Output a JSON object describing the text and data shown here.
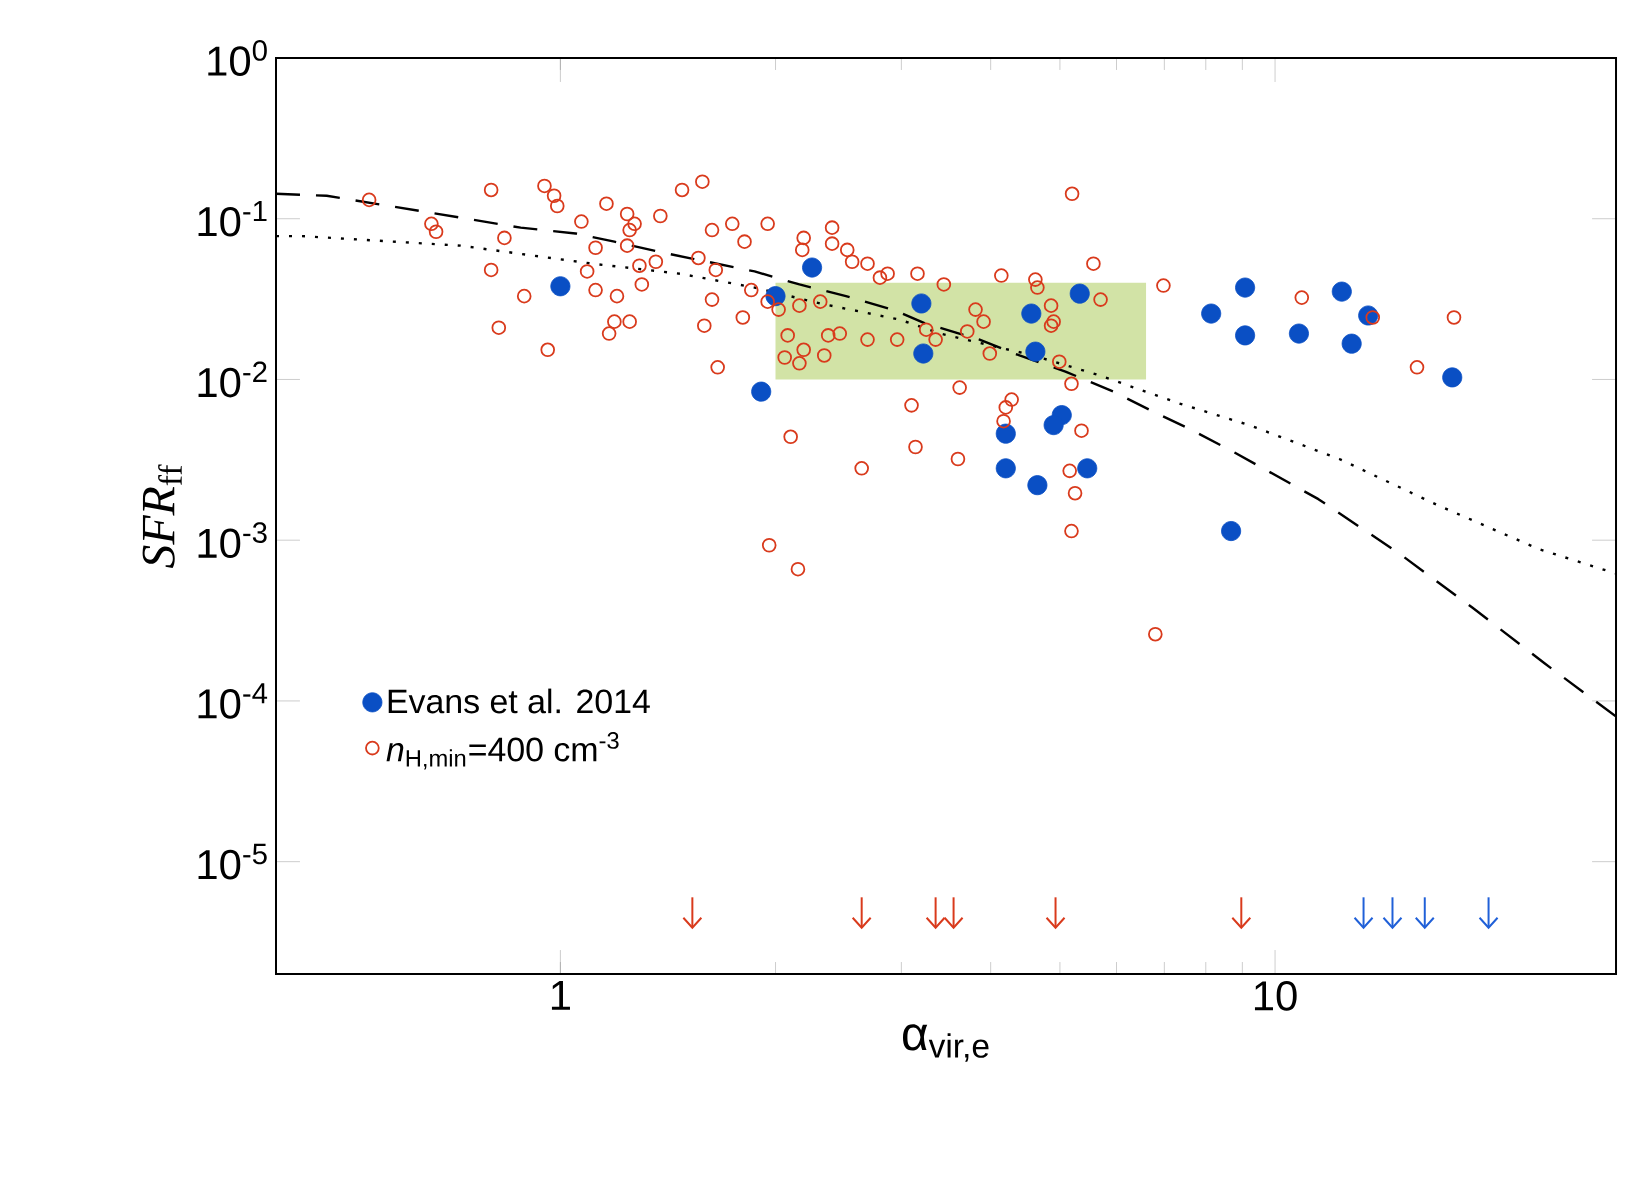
{
  "chart_data": {
    "type": "scatter",
    "xlabel": "α$_{vir,e}$",
    "ylabel": "*SFR*$_{ff}$",
    "log": "xy",
    "xlim": [
      0.4,
      30
    ],
    "ylim": [
      2e-06,
      1
    ],
    "xticks": [
      1,
      10
    ],
    "yticks": [
      {
        "value": 1,
        "label": "10$^{0}$"
      },
      {
        "value": 0.1,
        "label": "10$^{-1}$"
      },
      {
        "value": 0.01,
        "label": "10$^{-2}$"
      },
      {
        "value": 0.001,
        "label": "10$^{-3}$"
      },
      {
        "value": 0.0001,
        "label": "10$^{-4}$"
      },
      {
        "value": 1e-05,
        "label": "10$^{-5}$"
      }
    ],
    "legend": "bottom left",
    "series": [
      {
        "type": "area",
        "color": "#d2e3a6",
        "x": [
          2,
          6.6
        ],
        "values": [
          null,
          null
        ],
        "lower": [
          0.01,
          0.01
        ],
        "upper": [
          0.04,
          0.04
        ]
      },
      {
        "type": "line",
        "color": "#000000",
        "line_style": "dashed",
        "marker": "none",
        "x": [
          0.4,
          0.471,
          0.65,
          0.88,
          1.05,
          1.19,
          1.38,
          1.87,
          2.16,
          2.51,
          2.93,
          3.24,
          3.86,
          4.39,
          5.09,
          5.94,
          6.76,
          7.68,
          8.79,
          11.5,
          14.9,
          18.9,
          23.8,
          30
        ],
        "values": [
          0.143,
          0.139,
          0.11,
          0.088,
          0.081,
          0.072,
          0.062,
          0.047,
          0.039,
          0.033,
          0.027,
          0.0223,
          0.0177,
          0.0141,
          0.0112,
          0.0084,
          0.0063,
          0.0048,
          0.0035,
          0.0018,
          0.00083,
          0.00038,
          0.000172,
          8e-05
        ]
      },
      {
        "type": "line",
        "color": "#000000",
        "line_style": "dotted",
        "marker": "none",
        "x": [
          0.4,
          0.434,
          0.725,
          1.11,
          1.47,
          1.87,
          2.31,
          2.98,
          3.4,
          4.59,
          5.68,
          7.34,
          9.2,
          12.3,
          16.9,
          23.4,
          30
        ],
        "values": [
          0.078,
          0.078,
          0.068,
          0.0525,
          0.0455,
          0.0373,
          0.0297,
          0.0236,
          0.0193,
          0.0141,
          0.0106,
          0.0071,
          0.0052,
          0.0032,
          0.00165,
          0.00088,
          0.00062
        ]
      },
      {
        "name": "Evans et al. 2014",
        "color": "#0a4fc4",
        "marker": "circle",
        "x": [
          1.0,
          2.0,
          2.25,
          1.91,
          3.2,
          3.22,
          4.56,
          4.62,
          5.33,
          4.2,
          5.03,
          4.9,
          4.2,
          4.65,
          5.46,
          8.68,
          8.14,
          9.08,
          9.08,
          10.8,
          12.4,
          13.5,
          12.8,
          17.7
        ],
        "values": [
          0.038,
          0.033,
          0.0497,
          0.0084,
          0.0297,
          0.0145,
          0.0257,
          0.0149,
          0.0342,
          0.0046,
          0.006,
          0.0052,
          0.0028,
          0.0022,
          0.0028,
          0.00114,
          0.0257,
          0.0373,
          0.0188,
          0.0193,
          0.0352,
          0.025,
          0.0167,
          0.0103
        ]
      },
      {
        "name": "*n*$_{H,min}$=400 cm$^{-3}$",
        "color": "#d93a1c",
        "marker": "circle",
        "x": [
          0.54,
          0.66,
          0.67,
          0.8,
          0.95,
          0.98,
          0.99,
          1.07,
          0.835,
          0.8,
          1.09,
          1.12,
          1.12,
          0.89,
          0.82,
          0.96,
          1.16,
          1.24,
          1.27,
          1.25,
          1.38,
          1.48,
          1.58,
          1.24,
          1.2,
          1.29,
          1.36,
          1.3,
          1.19,
          1.25,
          1.17,
          1.56,
          1.63,
          1.74,
          1.81,
          1.95,
          1.65,
          1.63,
          1.8,
          1.59,
          1.66,
          1.85,
          1.95,
          2.02,
          2.19,
          2.18,
          2.4,
          2.4,
          2.52,
          2.56,
          2.69,
          2.8,
          2.87,
          2.16,
          2.31,
          2.08,
          2.37,
          2.46,
          2.06,
          2.19,
          2.16,
          2.34,
          2.69,
          2.96,
          3.16,
          3.1,
          3.14,
          2.1,
          2.64,
          1.96,
          2.15,
          5.2,
          3.44,
          4.14,
          4.62,
          4.65,
          5.57,
          5.7,
          6.98,
          4.86,
          4.9,
          4.86,
          3.81,
          3.91,
          3.71,
          3.25,
          3.35,
          3.99,
          4.99,
          5.19,
          3.62,
          4.28,
          4.2,
          4.17,
          5.36,
          3.6,
          5.16,
          5.25,
          5.19,
          6.8,
          10.9,
          13.7,
          17.8,
          15.8
        ],
        "values": [
          0.131,
          0.093,
          0.083,
          0.151,
          0.16,
          0.139,
          0.12,
          0.096,
          0.076,
          0.048,
          0.047,
          0.066,
          0.036,
          0.033,
          0.021,
          0.0153,
          0.124,
          0.107,
          0.093,
          0.085,
          0.104,
          0.151,
          0.17,
          0.068,
          0.033,
          0.051,
          0.054,
          0.039,
          0.0229,
          0.0229,
          0.0193,
          0.057,
          0.085,
          0.093,
          0.072,
          0.093,
          0.048,
          0.0314,
          0.0243,
          0.0216,
          0.0119,
          0.036,
          0.0305,
          0.0272,
          0.076,
          0.064,
          0.088,
          0.07,
          0.064,
          0.054,
          0.0525,
          0.043,
          0.0455,
          0.0288,
          0.0305,
          0.0188,
          0.0188,
          0.0193,
          0.0137,
          0.0153,
          0.0126,
          0.0141,
          0.0177,
          0.0177,
          0.0455,
          0.0069,
          0.0038,
          0.0044,
          0.0028,
          0.00093,
          0.00066,
          0.143,
          0.039,
          0.0443,
          0.0418,
          0.0373,
          0.0525,
          0.0314,
          0.0384,
          0.0288,
          0.0229,
          0.0216,
          0.0272,
          0.0229,
          0.0199,
          0.0204,
          0.0177,
          0.0145,
          0.0129,
          0.0094,
          0.0089,
          0.0075,
          0.0067,
          0.0055,
          0.0048,
          0.0032,
          0.0027,
          0.00196,
          0.00114,
          0.00026,
          0.0323,
          0.0243,
          0.0243,
          0.0119
        ]
      },
      {
        "color": "#d93a1c",
        "x": [
          1.53,
          2.64,
          3.35,
          3.55,
          4.93,
          8.97
        ],
        "values": [
          4.2e-06,
          4.2e-06,
          4.2e-06,
          4.2e-06,
          4.2e-06,
          4.2e-06
        ],
        "errors": [
          [
            3.8e-06,
            6e-06
          ],
          [
            3.8e-06,
            6e-06
          ],
          [
            3.8e-06,
            6e-06
          ],
          [
            3.8e-06,
            6e-06
          ],
          [
            3.8e-06,
            6e-06
          ],
          [
            3.8e-06,
            6e-06
          ]
        ]
      },
      {
        "color": "#2060d8",
        "x": [
          13.3,
          14.6,
          16.2,
          19.9
        ],
        "values": [
          4.2e-06,
          4.2e-06,
          4.2e-06,
          4.2e-06
        ],
        "errors": [
          [
            3.8e-06,
            6e-06
          ],
          [
            3.8e-06,
            6e-06
          ],
          [
            3.8e-06,
            6e-06
          ],
          [
            3.8e-06,
            6e-06
          ]
        ]
      }
    ]
  }
}
